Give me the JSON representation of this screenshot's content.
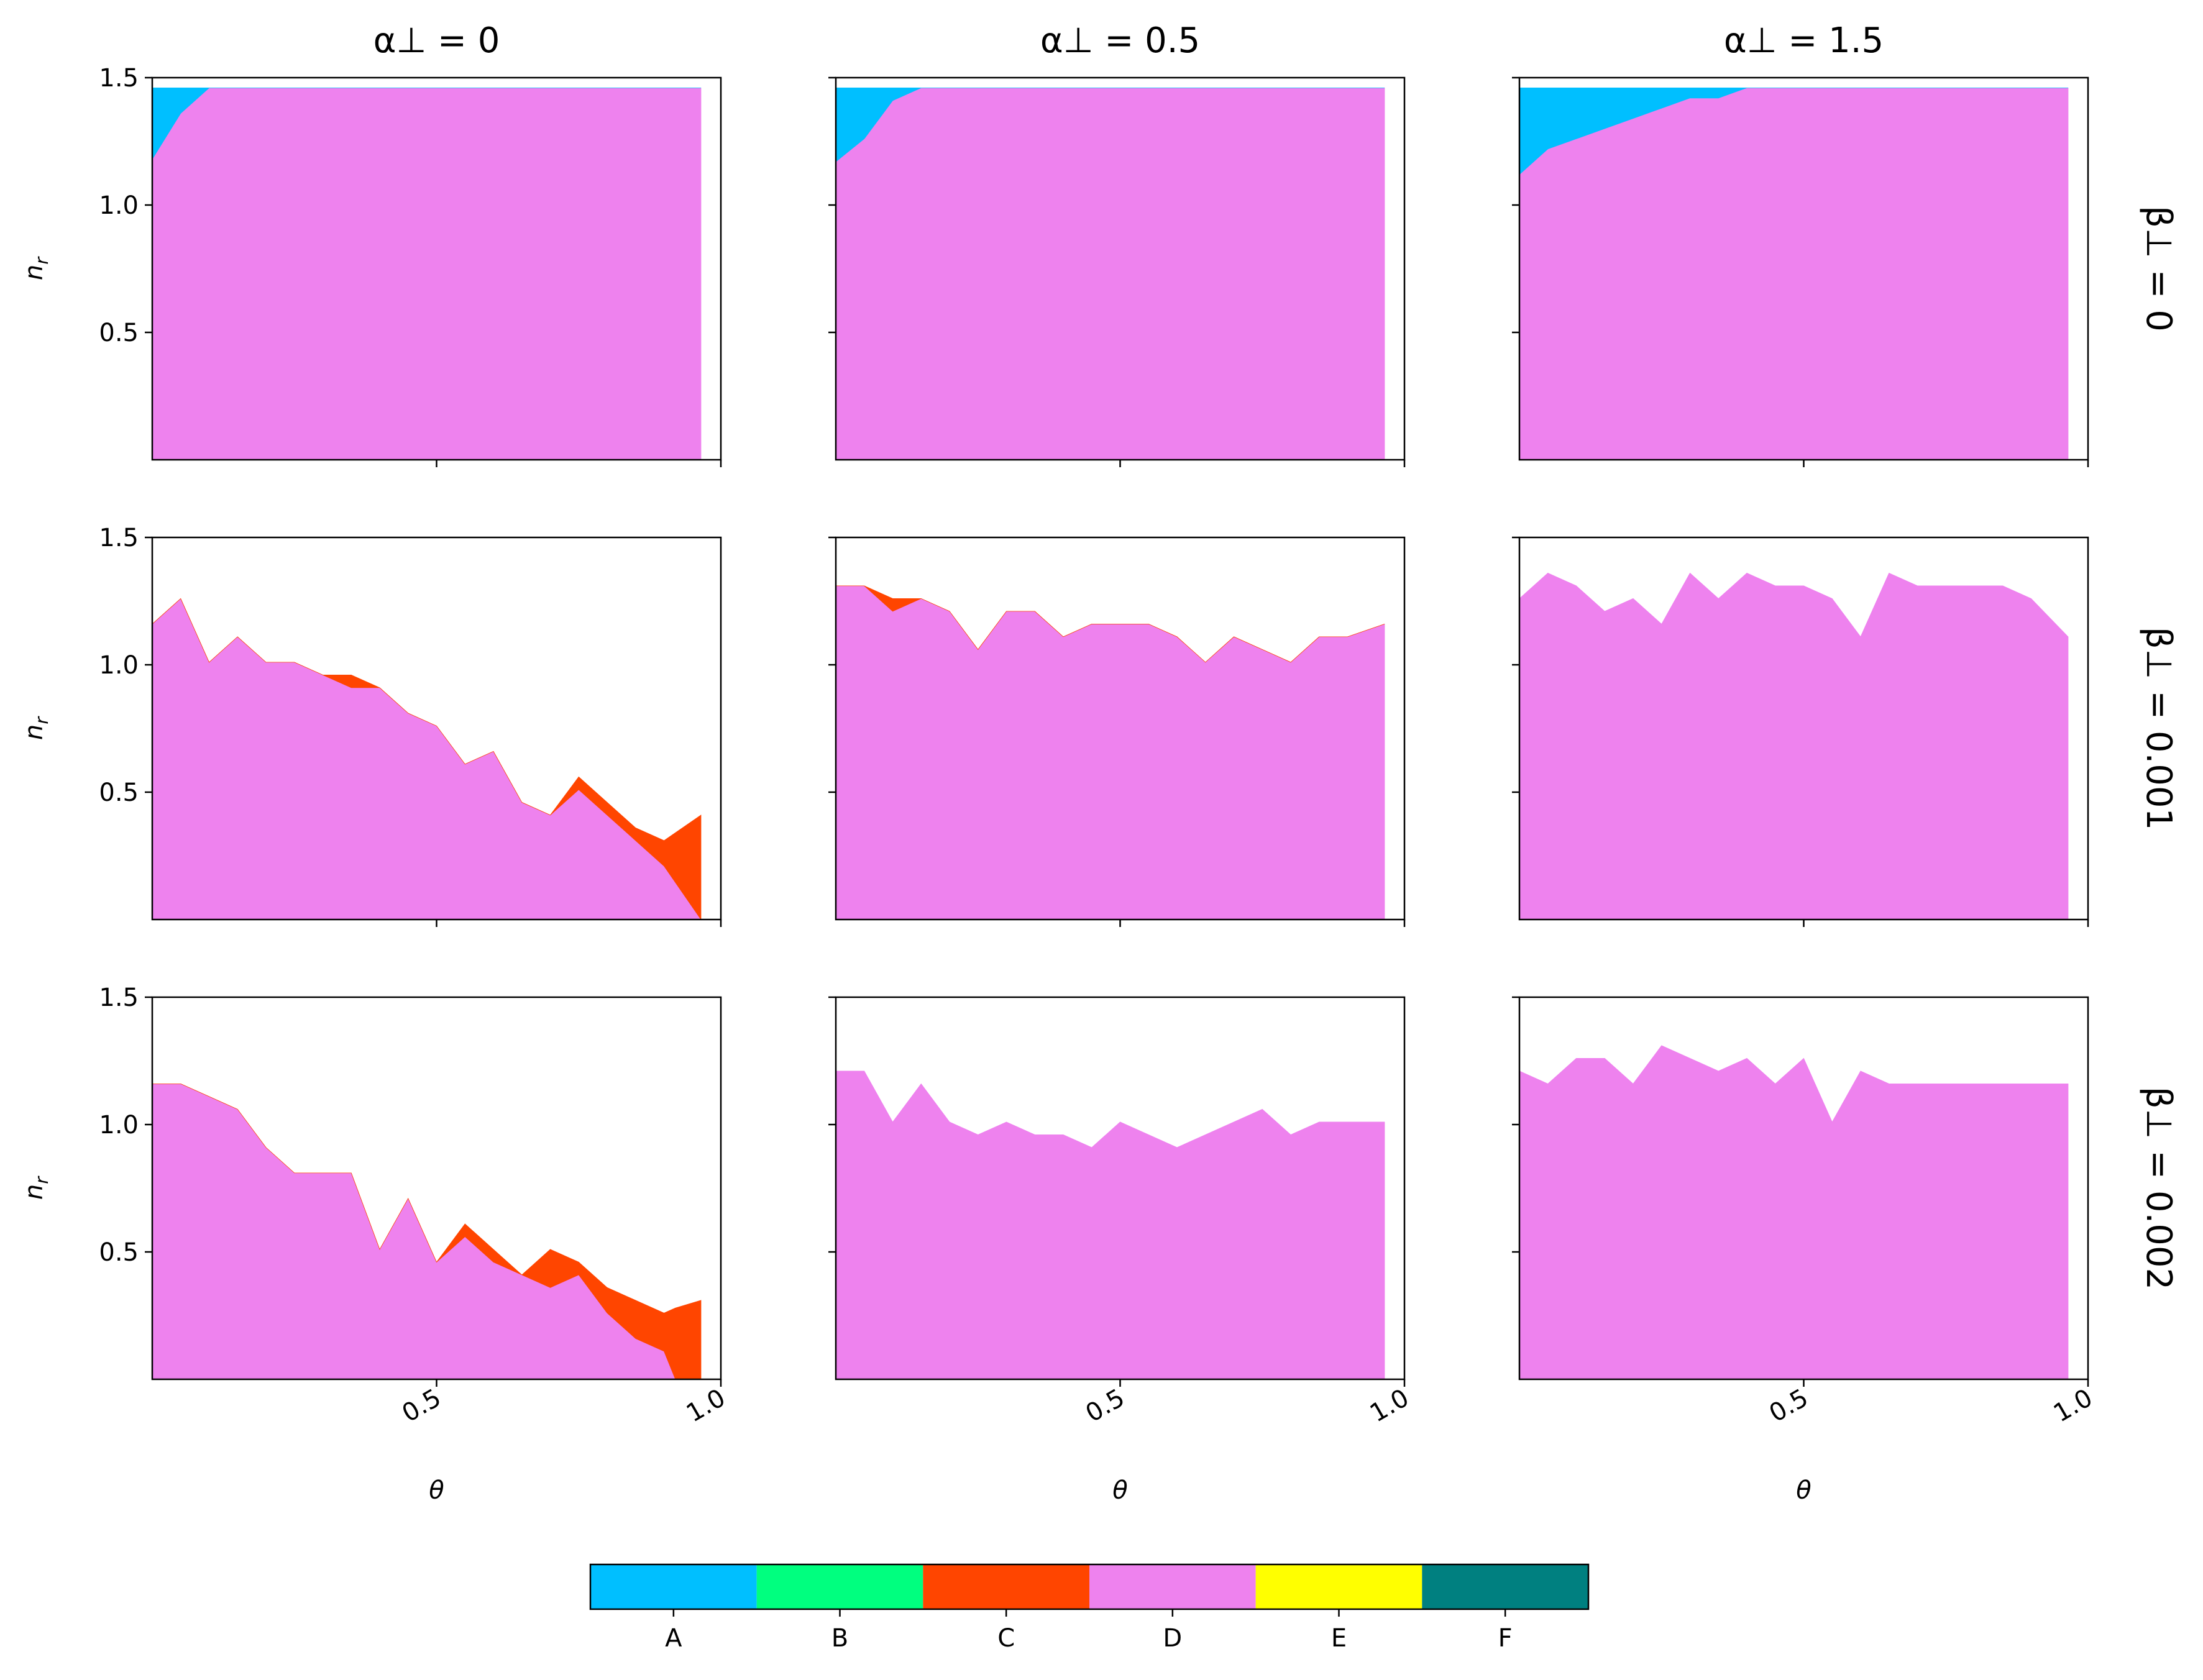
{
  "colors": {
    "A": "#00BFFF",
    "B": "#00FF7F",
    "C": "#FF4500",
    "D": "#EE82EE",
    "E": "#FFFF00",
    "F": "#008080",
    "axes": "#000000",
    "background": "#FFFFFF"
  },
  "col_titles": [
    "α⊥ = 0",
    "α⊥ = 0.5",
    "α⊥ = 1.5"
  ],
  "row_titles": [
    "β⊥ = 0",
    "β⊥ = 0.001",
    "β⊥ = 0.002"
  ],
  "chart_data": {
    "type": "area",
    "layout": "3x3 grid of stacked-area region plots sharing axes",
    "xlabel": "θ",
    "ylabel": "n_r",
    "xlim": [
      0,
      1.0
    ],
    "ylim": [
      0,
      1.5
    ],
    "xticks": [
      0.5,
      1.0
    ],
    "xtick_labels": [
      "0.5",
      "1.0"
    ],
    "yticks": [
      0.5,
      1.0,
      1.5
    ],
    "ytick_labels": [
      "0.5",
      "1.0",
      "1.5"
    ],
    "legend": {
      "type": "colorbar",
      "position": "bottom",
      "categories": [
        "A",
        "B",
        "C",
        "D",
        "E",
        "F"
      ]
    },
    "panels": [
      {
        "row": 0,
        "col": 0,
        "x": [
          0.0,
          0.05,
          0.1,
          0.965
        ],
        "series": [
          {
            "region": "D",
            "lower": [
              0,
              0,
              0,
              0
            ],
            "upper": [
              1.18,
              1.36,
              1.46,
              1.46
            ]
          },
          {
            "region": "A",
            "lower": [
              1.18,
              1.36,
              1.46,
              1.46
            ],
            "upper": [
              1.46,
              1.46,
              1.46,
              1.46
            ]
          }
        ]
      },
      {
        "row": 0,
        "col": 1,
        "x": [
          0.0,
          0.05,
          0.1,
          0.15,
          0.965
        ],
        "series": [
          {
            "region": "D",
            "lower": [
              0,
              0,
              0,
              0,
              0
            ],
            "upper": [
              1.17,
              1.26,
              1.41,
              1.46,
              1.46
            ]
          },
          {
            "region": "A",
            "lower": [
              1.17,
              1.26,
              1.41,
              1.46,
              1.46
            ],
            "upper": [
              1.46,
              1.46,
              1.46,
              1.46,
              1.46
            ]
          }
        ]
      },
      {
        "row": 0,
        "col": 2,
        "x": [
          0.0,
          0.05,
          0.1,
          0.15,
          0.2,
          0.25,
          0.3,
          0.35,
          0.4,
          0.965
        ],
        "series": [
          {
            "region": "D",
            "lower": [
              0,
              0,
              0,
              0,
              0,
              0,
              0,
              0,
              0,
              0
            ],
            "upper": [
              1.12,
              1.22,
              1.26,
              1.3,
              1.34,
              1.38,
              1.42,
              1.42,
              1.46,
              1.46
            ]
          },
          {
            "region": "A",
            "lower": [
              1.12,
              1.22,
              1.26,
              1.3,
              1.34,
              1.38,
              1.42,
              1.42,
              1.46,
              1.46
            ],
            "upper": [
              1.46,
              1.46,
              1.46,
              1.46,
              1.46,
              1.46,
              1.46,
              1.46,
              1.46,
              1.46
            ]
          }
        ]
      },
      {
        "row": 1,
        "col": 0,
        "x": [
          0.0,
          0.05,
          0.1,
          0.15,
          0.2,
          0.25,
          0.3,
          0.35,
          0.4,
          0.45,
          0.5,
          0.55,
          0.6,
          0.65,
          0.7,
          0.75,
          0.8,
          0.85,
          0.9,
          0.965
        ],
        "series": [
          {
            "region": "D",
            "lower": [
              0,
              0,
              0,
              0,
              0,
              0,
              0,
              0,
              0,
              0,
              0,
              0,
              0,
              0,
              0,
              0,
              0,
              0,
              0,
              0
            ],
            "upper": [
              1.16,
              1.26,
              1.01,
              1.11,
              1.01,
              1.01,
              0.96,
              0.91,
              0.91,
              0.81,
              0.76,
              0.61,
              0.66,
              0.46,
              0.41,
              0.51,
              0.41,
              0.31,
              0.21,
              0.0
            ]
          },
          {
            "region": "C",
            "lower": [
              1.16,
              1.26,
              1.01,
              1.11,
              1.01,
              1.01,
              0.96,
              0.91,
              0.91,
              0.81,
              0.76,
              0.61,
              0.66,
              0.46,
              0.41,
              0.51,
              0.41,
              0.31,
              0.21,
              0.0
            ],
            "upper": [
              1.16,
              1.26,
              1.01,
              1.11,
              1.01,
              1.01,
              0.96,
              0.96,
              0.91,
              0.81,
              0.76,
              0.61,
              0.66,
              0.46,
              0.41,
              0.56,
              0.46,
              0.36,
              0.31,
              0.41
            ]
          }
        ]
      },
      {
        "row": 1,
        "col": 1,
        "x": [
          0.0,
          0.05,
          0.1,
          0.15,
          0.2,
          0.25,
          0.3,
          0.35,
          0.4,
          0.45,
          0.5,
          0.55,
          0.6,
          0.65,
          0.7,
          0.75,
          0.8,
          0.85,
          0.9,
          0.965
        ],
        "series": [
          {
            "region": "D",
            "lower": [
              0,
              0,
              0,
              0,
              0,
              0,
              0,
              0,
              0,
              0,
              0,
              0,
              0,
              0,
              0,
              0,
              0,
              0,
              0,
              0
            ],
            "upper": [
              1.31,
              1.31,
              1.21,
              1.26,
              1.21,
              1.06,
              1.21,
              1.21,
              1.11,
              1.16,
              1.16,
              1.16,
              1.11,
              1.01,
              1.11,
              1.06,
              1.01,
              1.11,
              1.11,
              1.16
            ]
          },
          {
            "region": "C",
            "lower": [
              1.31,
              1.31,
              1.21,
              1.26,
              1.21,
              1.06,
              1.21,
              1.21,
              1.11,
              1.16,
              1.16,
              1.16,
              1.11,
              1.01,
              1.11,
              1.06,
              1.01,
              1.11,
              1.11,
              1.16
            ],
            "upper": [
              1.31,
              1.31,
              1.26,
              1.26,
              1.21,
              1.06,
              1.21,
              1.21,
              1.11,
              1.16,
              1.16,
              1.16,
              1.11,
              1.01,
              1.11,
              1.06,
              1.01,
              1.11,
              1.11,
              1.16
            ]
          }
        ]
      },
      {
        "row": 1,
        "col": 2,
        "x": [
          0.0,
          0.05,
          0.1,
          0.15,
          0.2,
          0.25,
          0.3,
          0.35,
          0.4,
          0.45,
          0.5,
          0.55,
          0.6,
          0.65,
          0.7,
          0.75,
          0.8,
          0.85,
          0.9,
          0.965
        ],
        "series": [
          {
            "region": "D",
            "lower": [
              0,
              0,
              0,
              0,
              0,
              0,
              0,
              0,
              0,
              0,
              0,
              0,
              0,
              0,
              0,
              0,
              0,
              0,
              0,
              0
            ],
            "upper": [
              1.26,
              1.36,
              1.31,
              1.21,
              1.26,
              1.16,
              1.36,
              1.26,
              1.36,
              1.31,
              1.31,
              1.26,
              1.11,
              1.36,
              1.31,
              1.31,
              1.31,
              1.31,
              1.26,
              1.11
            ]
          }
        ]
      },
      {
        "row": 2,
        "col": 0,
        "x": [
          0.0,
          0.05,
          0.1,
          0.15,
          0.2,
          0.25,
          0.3,
          0.35,
          0.4,
          0.45,
          0.5,
          0.55,
          0.6,
          0.65,
          0.7,
          0.75,
          0.8,
          0.85,
          0.9,
          0.92,
          0.965
        ],
        "series": [
          {
            "region": "D",
            "lower": [
              0,
              0,
              0,
              0,
              0,
              0,
              0,
              0,
              0,
              0,
              0,
              0,
              0,
              0,
              0,
              0,
              0,
              0,
              0,
              0,
              0
            ],
            "upper": [
              1.16,
              1.16,
              1.11,
              1.06,
              0.91,
              0.81,
              0.81,
              0.81,
              0.51,
              0.71,
              0.46,
              0.56,
              0.46,
              0.41,
              0.36,
              0.41,
              0.26,
              0.16,
              0.11,
              0.0,
              0.0
            ]
          },
          {
            "region": "C",
            "lower": [
              1.16,
              1.16,
              1.11,
              1.06,
              0.91,
              0.81,
              0.81,
              0.81,
              0.51,
              0.71,
              0.46,
              0.56,
              0.46,
              0.41,
              0.36,
              0.41,
              0.26,
              0.16,
              0.11,
              0.0,
              0.0
            ],
            "upper": [
              1.16,
              1.16,
              1.11,
              1.06,
              0.91,
              0.81,
              0.81,
              0.81,
              0.51,
              0.71,
              0.46,
              0.61,
              0.51,
              0.41,
              0.51,
              0.46,
              0.36,
              0.31,
              0.26,
              0.28,
              0.31
            ]
          }
        ]
      },
      {
        "row": 2,
        "col": 1,
        "x": [
          0.0,
          0.05,
          0.1,
          0.15,
          0.2,
          0.25,
          0.3,
          0.35,
          0.4,
          0.45,
          0.5,
          0.55,
          0.6,
          0.65,
          0.7,
          0.75,
          0.8,
          0.85,
          0.9,
          0.965
        ],
        "series": [
          {
            "region": "D",
            "lower": [
              0,
              0,
              0,
              0,
              0,
              0,
              0,
              0,
              0,
              0,
              0,
              0,
              0,
              0,
              0,
              0,
              0,
              0,
              0,
              0
            ],
            "upper": [
              1.21,
              1.21,
              1.01,
              1.16,
              1.01,
              0.96,
              1.01,
              0.96,
              0.96,
              0.91,
              1.01,
              0.96,
              0.91,
              0.96,
              1.01,
              1.06,
              0.96,
              1.01,
              1.01,
              1.01
            ]
          }
        ]
      },
      {
        "row": 2,
        "col": 2,
        "x": [
          0.0,
          0.05,
          0.1,
          0.15,
          0.2,
          0.25,
          0.3,
          0.35,
          0.4,
          0.45,
          0.5,
          0.55,
          0.6,
          0.65,
          0.7,
          0.75,
          0.8,
          0.85,
          0.9,
          0.965
        ],
        "series": [
          {
            "region": "D",
            "lower": [
              0,
              0,
              0,
              0,
              0,
              0,
              0,
              0,
              0,
              0,
              0,
              0,
              0,
              0,
              0,
              0,
              0,
              0,
              0,
              0
            ],
            "upper": [
              1.21,
              1.16,
              1.26,
              1.26,
              1.16,
              1.31,
              1.26,
              1.21,
              1.26,
              1.16,
              1.26,
              1.01,
              1.21,
              1.16,
              1.16,
              1.16,
              1.16,
              1.16,
              1.16,
              1.16
            ]
          }
        ]
      }
    ]
  }
}
